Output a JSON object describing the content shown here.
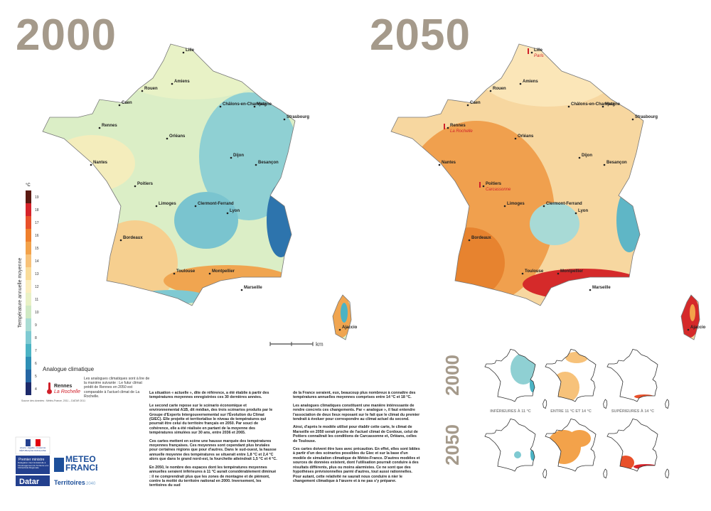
{
  "titles": {
    "left": "2000",
    "right": "2050"
  },
  "legend": {
    "unit": "°C",
    "axis_label": "Température annuelle moyenne",
    "steps": [
      {
        "value": 19,
        "color": "#5b1a12"
      },
      {
        "value": 18,
        "color": "#d6232a"
      },
      {
        "value": 17,
        "color": "#e8502a"
      },
      {
        "value": 16,
        "color": "#ef7f2c"
      },
      {
        "value": 15,
        "color": "#f3a24a"
      },
      {
        "value": 14,
        "color": "#f7c27a"
      },
      {
        "value": 13,
        "color": "#f9dc9a"
      },
      {
        "value": 12,
        "color": "#fbeec0"
      },
      {
        "value": 11,
        "color": "#e9f1c6"
      },
      {
        "value": 10,
        "color": "#cfe9c4"
      },
      {
        "value": 9,
        "color": "#a9dcd3"
      },
      {
        "value": 8,
        "color": "#7fcad2"
      },
      {
        "value": 7,
        "color": "#4bb3c4"
      },
      {
        "value": 6,
        "color": "#2e8fb5"
      },
      {
        "value": 5,
        "color": "#2566a3"
      },
      {
        "value": 4,
        "color": "#1d2a6a"
      }
    ]
  },
  "cities": [
    "Lille",
    "Amiens",
    "Rouen",
    "Caen",
    "Châlons-en-Champagne",
    "Metz",
    "Strasbourg",
    "Rennes",
    "Nantes",
    "Orléans",
    "Dijon",
    "Besançon",
    "Poitiers",
    "Limoges",
    "Clermont-Ferrand",
    "Lyon",
    "Bordeaux",
    "Toulouse",
    "Montpellier",
    "Marseille",
    "Ajaccio"
  ],
  "analogues": [
    {
      "city": "Lille",
      "analog": "Paris"
    },
    {
      "city": "Rennes",
      "analog": "La Rochelle"
    },
    {
      "city": "Poitiers",
      "analog": "Carcassonne"
    }
  ],
  "scale_unit": "km",
  "analog_box": {
    "title": "Analogue climatique",
    "text": "Les analogues climatiques sont à lire de la manière suivante : Le futur climat prédit de Rennes en 2050 est comparable à l'actuel climat de La Rochelle.",
    "city": "Rennes",
    "analog": "La Rochelle"
  },
  "body": {
    "col1": [
      "La situation « actuelle », dite de référence, a été établie à partir des températures moyennes enregistrées ces 30 dernières années.",
      "Le second carte repose sur le scénario économique et environnemental A1B, dit médian, des trois scénarios produits par le Groupe d'Experts Intergouvernemental sur l'Évolution du Climat (GIEC). Elle projette et territorialise le niveau de températures qui pourrait être celui du territoire français en 2050. Par souci de cohérence, elle a été réalisée en partant de la moyenne des températures simulées sur 30 ans, entre 2036 et 2065.",
      "Ces cartes mettent en scène une hausse marquée des températures moyennes françaises. Ces moyennes sont cependant plus brutales pour certaines régions que pour d'autres. Dans le sud-ouest, la hausse annuelle moyenne des températures se situerait entre 1,8 °C et 2,4 °C alors que dans le grand nord-est, la fourchette atteindrait 1,5 °C et 4 °C.",
      "En 2050, le nombre des espaces dont les températures moyennes annuelles seraient inférieures à 11 °C aurait considérablement diminué : il ne comprendrait plus que les zones de montagne et de piémont, contre la moitié du territoire national en 2000. Inversement, les territoires du sud"
    ],
    "col2": [
      "de la France seraient, eux, beaucoup plus nombreux à connaître des températures annuelles moyennes comprises entre 14 °C et 18 °C.",
      "Les analogues climatiques constituent une manière intéressante de rendre concrets ces changements. Par « analogue », il faut entendre l'association de deux lieux reposant sur le fait que le climat du premier tendrait à évoluer pour correspondre au climat actuel du second.",
      "Ainsi, d'après le modèle utilisé pour établir cette carte, le climat de Marseille en 2050 serait proche de l'actuel climat de Cordoue, celui de Poitiers connaîtrait les conditions de Carcassonne et, Orléans, celles de Toulouse.",
      "Ces cartes doivent être lues avec précaution. En effet, elles sont bâties à partir d'un des scénarios possibles du Giec et sur la base d'un modèle de simulation climatique de Météo-France. D'autres modèles et sources de données existent, dont l'utilisation pourrait conduire à des résultats différents, plus ou moins alarmistes. Ce ne sont que des hypothèses prévisionnelles parmi d'autres, tout aussi rationnelles. Pour autant, cette relativité ne saurait nous conduire à nier le changement climatique à l'œuvre et à ne pas s'y préparer."
    ]
  },
  "small_maps": {
    "rows": [
      "2000",
      "2050"
    ],
    "columns": [
      "INFÉRIEURES À 11 °C",
      "ENTRE 11 °C ET 14 °C",
      "SUPÉRIEURES À 14 °C"
    ]
  },
  "source": "Source des données : Météo-France, 2011 – DATAR 2011",
  "logos": {
    "republic": "Liberté • Égalité • Fraternité RÉPUBLIQUE FRANÇAISE",
    "pm": "Premier ministre",
    "pm_text": "Délégation interministérielle à l'Aménagement du Territoire et à l'Attractivité Régionale",
    "datar": "Datar",
    "meteo": "METEO FRANCE",
    "territoires": "Territoires",
    "territoires_year": "2040"
  }
}
